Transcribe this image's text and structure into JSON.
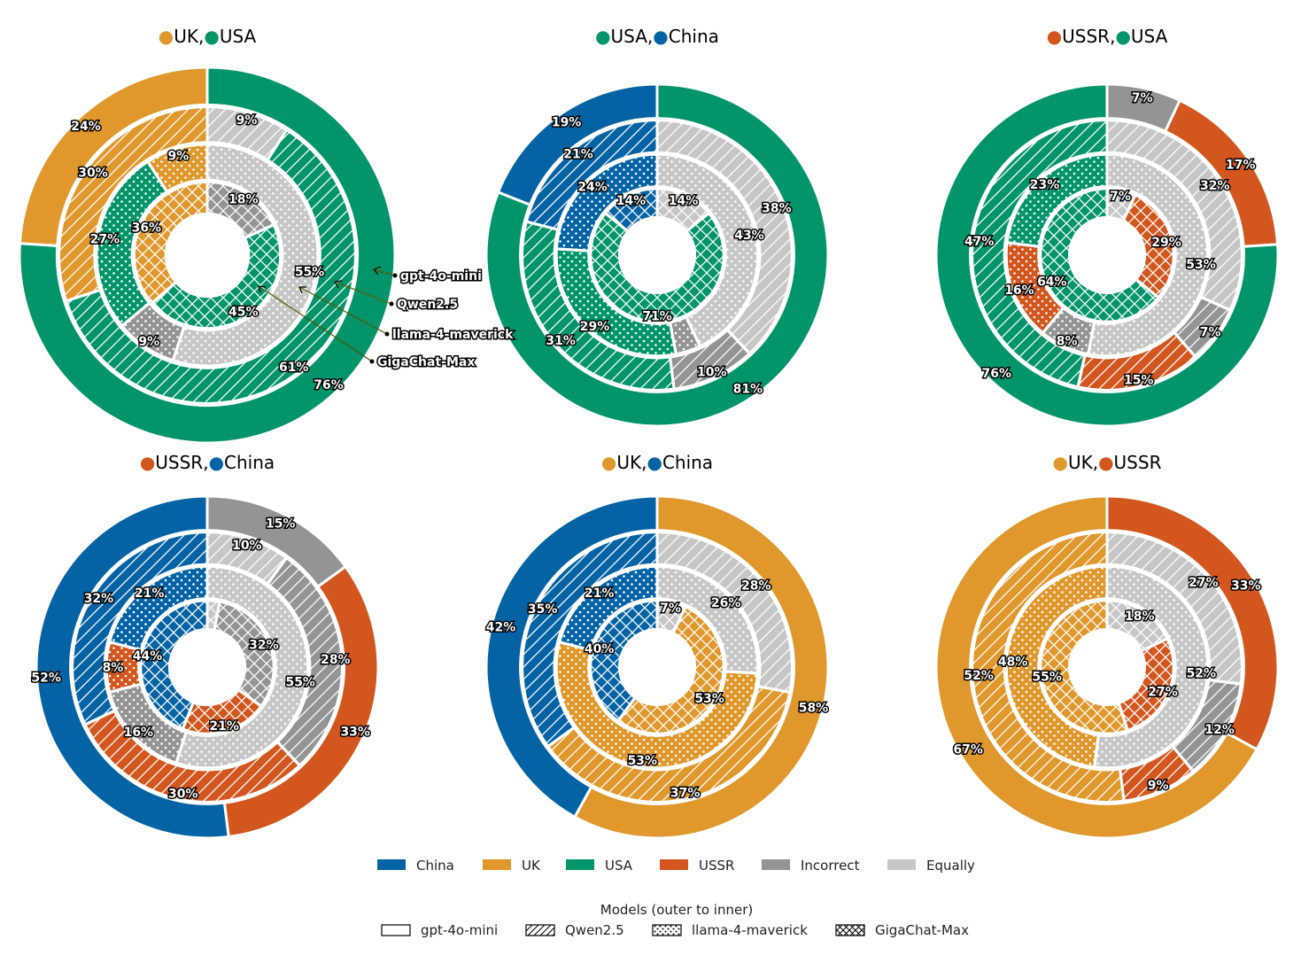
{
  "colors": {
    "China": "#0463a5",
    "UK": "#e0972b",
    "USA": "#02946a",
    "USSR": "#d3561e",
    "Incorrect": "#949494",
    "Equally": "#c6c6c6"
  },
  "chart_data": {
    "type": "nested-donut",
    "ring_order": "outer to inner",
    "models": [
      "gpt-4o-mini",
      "Qwen2.5",
      "llama-4-maverick",
      "GigaChat-Max"
    ],
    "categories": [
      "China",
      "UK",
      "USA",
      "USSR",
      "Incorrect",
      "Equally"
    ],
    "panels": [
      {
        "title_a": "UK",
        "title_b": "USA",
        "rings": [
          {
            "model": "gpt-4o-mini",
            "segments": [
              {
                "cat": "USA",
                "value": 76
              },
              {
                "cat": "UK",
                "value": 24
              }
            ]
          },
          {
            "model": "Qwen2.5",
            "segments": [
              {
                "cat": "Equally",
                "value": 9
              },
              {
                "cat": "USA",
                "value": 61
              },
              {
                "cat": "UK",
                "value": 30
              }
            ]
          },
          {
            "model": "llama-4-maverick",
            "segments": [
              {
                "cat": "Equally",
                "value": 55
              },
              {
                "cat": "Incorrect",
                "value": 9
              },
              {
                "cat": "USA",
                "value": 27
              },
              {
                "cat": "UK",
                "value": 9
              }
            ]
          },
          {
            "model": "GigaChat-Max",
            "segments": [
              {
                "cat": "Incorrect",
                "value": 18
              },
              {
                "cat": "USA",
                "value": 45
              },
              {
                "cat": "UK",
                "value": 36
              }
            ]
          }
        ]
      },
      {
        "title_a": "USA",
        "title_b": "China",
        "rings": [
          {
            "model": "gpt-4o-mini",
            "segments": [
              {
                "cat": "USA",
                "value": 81
              },
              {
                "cat": "China",
                "value": 19
              }
            ]
          },
          {
            "model": "Qwen2.5",
            "segments": [
              {
                "cat": "Equally",
                "value": 38
              },
              {
                "cat": "Incorrect",
                "value": 10
              },
              {
                "cat": "USA",
                "value": 31
              },
              {
                "cat": "China",
                "value": 21
              }
            ]
          },
          {
            "model": "llama-4-maverick",
            "segments": [
              {
                "cat": "Equally",
                "value": 43
              },
              {
                "cat": "Incorrect",
                "value": 4
              },
              {
                "cat": "USA",
                "value": 29
              },
              {
                "cat": "China",
                "value": 24
              }
            ]
          },
          {
            "model": "GigaChat-Max",
            "segments": [
              {
                "cat": "Equally",
                "value": 14
              },
              {
                "cat": "USA",
                "value": 71
              },
              {
                "cat": "China",
                "value": 14
              }
            ]
          }
        ]
      },
      {
        "title_a": "USSR",
        "title_b": "USA",
        "rings": [
          {
            "model": "gpt-4o-mini",
            "segments": [
              {
                "cat": "Incorrect",
                "value": 7
              },
              {
                "cat": "USSR",
                "value": 17
              },
              {
                "cat": "USA",
                "value": 76
              }
            ]
          },
          {
            "model": "Qwen2.5",
            "segments": [
              {
                "cat": "Equally",
                "value": 32
              },
              {
                "cat": "Incorrect",
                "value": 7
              },
              {
                "cat": "USSR",
                "value": 15
              },
              {
                "cat": "USA",
                "value": 47
              }
            ]
          },
          {
            "model": "llama-4-maverick",
            "segments": [
              {
                "cat": "Equally",
                "value": 53
              },
              {
                "cat": "Incorrect",
                "value": 8
              },
              {
                "cat": "USSR",
                "value": 16
              },
              {
                "cat": "USA",
                "value": 23
              }
            ]
          },
          {
            "model": "GigaChat-Max",
            "segments": [
              {
                "cat": "Equally",
                "value": 7
              },
              {
                "cat": "USSR",
                "value": 29
              },
              {
                "cat": "USA",
                "value": 64
              }
            ]
          }
        ]
      },
      {
        "title_a": "USSR",
        "title_b": "China",
        "rings": [
          {
            "model": "gpt-4o-mini",
            "segments": [
              {
                "cat": "Incorrect",
                "value": 15
              },
              {
                "cat": "USSR",
                "value": 33
              },
              {
                "cat": "China",
                "value": 52
              }
            ]
          },
          {
            "model": "Qwen2.5",
            "segments": [
              {
                "cat": "Equally",
                "value": 10
              },
              {
                "cat": "Incorrect",
                "value": 28
              },
              {
                "cat": "USSR",
                "value": 30
              },
              {
                "cat": "China",
                "value": 32
              }
            ]
          },
          {
            "model": "llama-4-maverick",
            "segments": [
              {
                "cat": "Equally",
                "value": 55
              },
              {
                "cat": "Incorrect",
                "value": 16
              },
              {
                "cat": "USSR",
                "value": 8
              },
              {
                "cat": "China",
                "value": 21
              }
            ]
          },
          {
            "model": "GigaChat-Max",
            "segments": [
              {
                "cat": "Equally",
                "value": 3
              },
              {
                "cat": "Incorrect",
                "value": 32
              },
              {
                "cat": "USSR",
                "value": 21
              },
              {
                "cat": "China",
                "value": 44
              }
            ]
          }
        ]
      },
      {
        "title_a": "UK",
        "title_b": "China",
        "rings": [
          {
            "model": "gpt-4o-mini",
            "segments": [
              {
                "cat": "UK",
                "value": 58
              },
              {
                "cat": "China",
                "value": 42
              }
            ]
          },
          {
            "model": "Qwen2.5",
            "segments": [
              {
                "cat": "Equally",
                "value": 28
              },
              {
                "cat": "UK",
                "value": 37
              },
              {
                "cat": "China",
                "value": 35
              }
            ]
          },
          {
            "model": "llama-4-maverick",
            "segments": [
              {
                "cat": "Equally",
                "value": 26
              },
              {
                "cat": "UK",
                "value": 53
              },
              {
                "cat": "China",
                "value": 21
              }
            ]
          },
          {
            "model": "GigaChat-Max",
            "segments": [
              {
                "cat": "Equally",
                "value": 7
              },
              {
                "cat": "UK",
                "value": 53
              },
              {
                "cat": "China",
                "value": 40
              }
            ]
          }
        ]
      },
      {
        "title_a": "UK",
        "title_b": "USSR",
        "rings": [
          {
            "model": "gpt-4o-mini",
            "segments": [
              {
                "cat": "USSR",
                "value": 33
              },
              {
                "cat": "UK",
                "value": 67
              }
            ]
          },
          {
            "model": "Qwen2.5",
            "segments": [
              {
                "cat": "Equally",
                "value": 27
              },
              {
                "cat": "Incorrect",
                "value": 12
              },
              {
                "cat": "USSR",
                "value": 9
              },
              {
                "cat": "UK",
                "value": 52
              }
            ]
          },
          {
            "model": "llama-4-maverick",
            "segments": [
              {
                "cat": "Equally",
                "value": 52
              },
              {
                "cat": "UK",
                "value": 48
              }
            ]
          },
          {
            "model": "GigaChat-Max",
            "segments": [
              {
                "cat": "Equally",
                "value": 18
              },
              {
                "cat": "USSR",
                "value": 27
              },
              {
                "cat": "UK",
                "value": 55
              }
            ]
          }
        ]
      }
    ],
    "annotations": [
      "gpt-4o-mini",
      "Qwen2.5",
      "llama-4-maverick",
      "GigaChat-Max"
    ],
    "legend_categories": [
      "China",
      "UK",
      "USA",
      "USSR",
      "Incorrect",
      "Equally"
    ],
    "legend_models_title": "Models (outer to inner)",
    "legend_models": [
      "gpt-4o-mini",
      "Qwen2.5",
      "llama-4-maverick",
      "GigaChat-Max"
    ]
  }
}
